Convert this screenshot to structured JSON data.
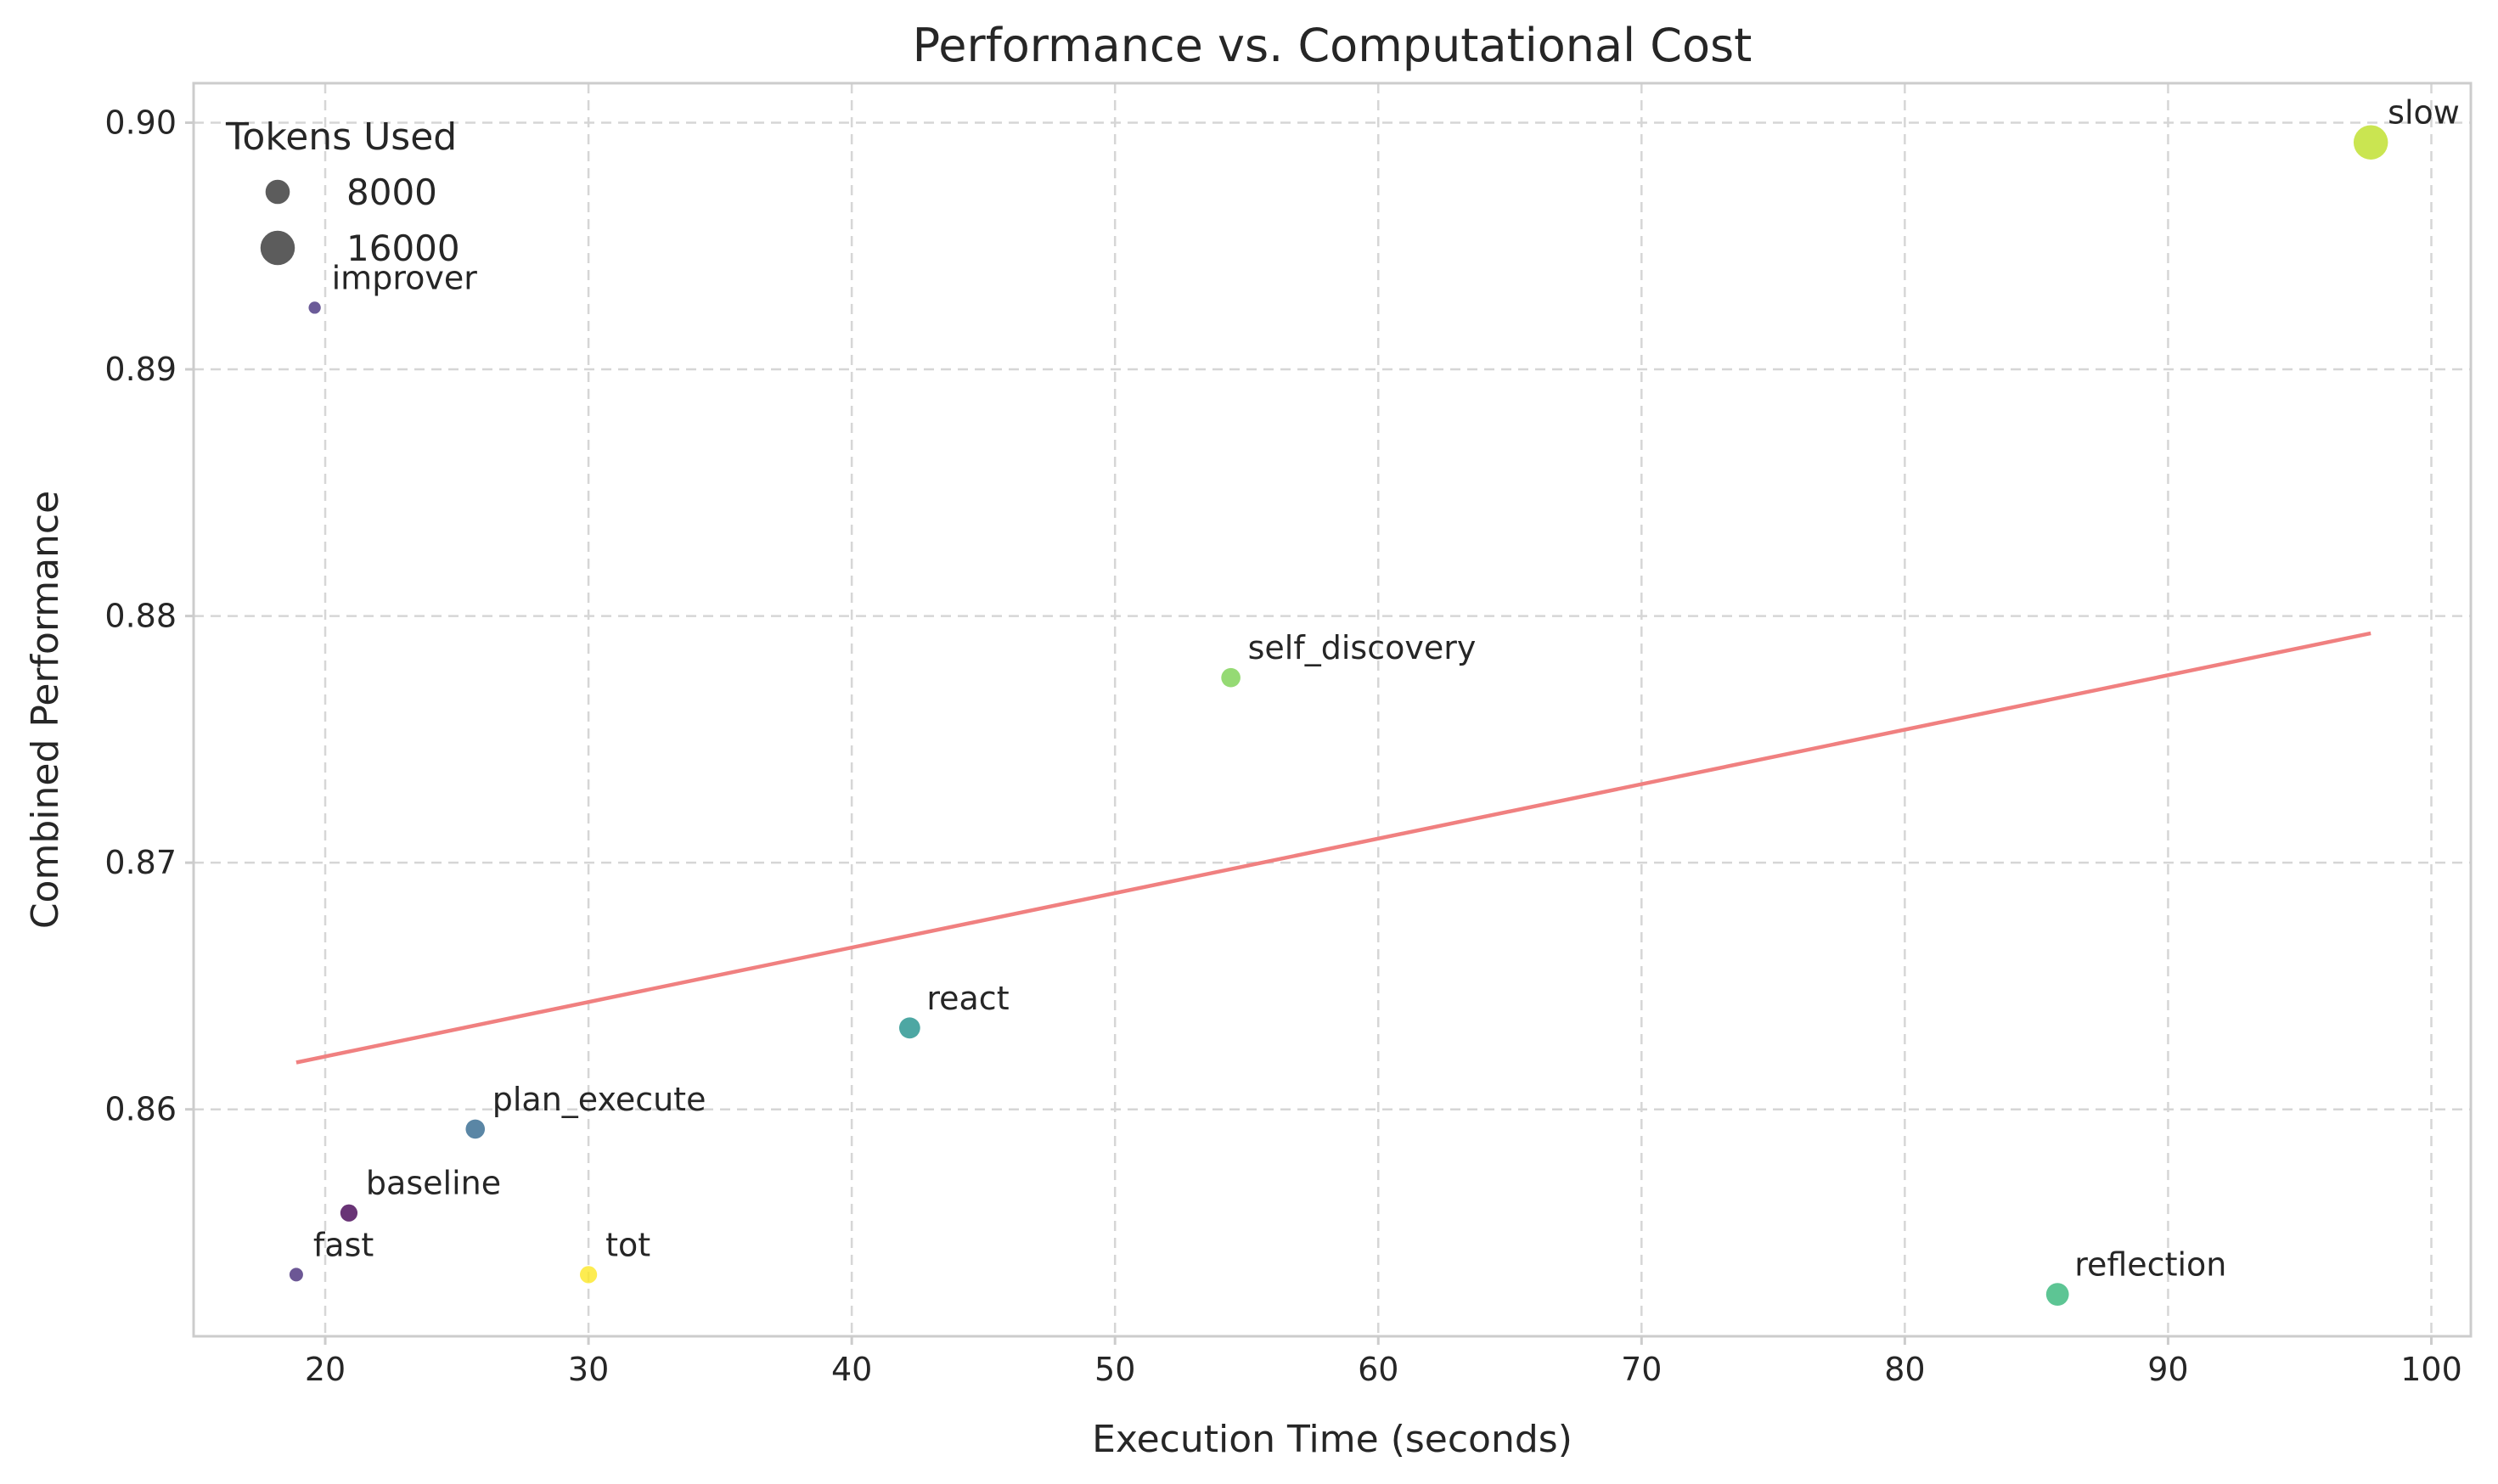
{
  "chart_data": {
    "type": "scatter",
    "title": "Performance vs. Computational Cost",
    "xlabel": "Execution Time (seconds)",
    "ylabel": "Combined Performance",
    "xlim": [
      15,
      101.5
    ],
    "ylim": [
      0.8508,
      0.9016
    ],
    "xticks": [
      20,
      30,
      40,
      50,
      60,
      70,
      80,
      90,
      100
    ],
    "yticks": [
      0.86,
      0.87,
      0.88,
      0.89,
      0.9
    ],
    "xtick_labels": [
      "20",
      "30",
      "40",
      "50",
      "60",
      "70",
      "80",
      "90",
      "100"
    ],
    "ytick_labels": [
      "0.86",
      "0.87",
      "0.88",
      "0.89",
      "0.90"
    ],
    "grid": true,
    "colormap": "viridis",
    "points": [
      {
        "label": "improver",
        "x": 19.6,
        "y": 0.8925,
        "tokens": 2000,
        "color": "#46327e"
      },
      {
        "label": "fast",
        "x": 18.9,
        "y": 0.8533,
        "tokens": 2500,
        "color": "#472d7b"
      },
      {
        "label": "baseline",
        "x": 20.9,
        "y": 0.8558,
        "tokens": 4000,
        "color": "#440154"
      },
      {
        "label": "plan_execute",
        "x": 25.7,
        "y": 0.8592,
        "tokens": 5000,
        "color": "#31688e"
      },
      {
        "label": "tot",
        "x": 30.0,
        "y": 0.8533,
        "tokens": 4000,
        "color": "#fde725"
      },
      {
        "label": "react",
        "x": 42.2,
        "y": 0.8633,
        "tokens": 6000,
        "color": "#21918c"
      },
      {
        "label": "self_discovery",
        "x": 54.4,
        "y": 0.8775,
        "tokens": 5000,
        "color": "#7ad151"
      },
      {
        "label": "reflection",
        "x": 85.8,
        "y": 0.8525,
        "tokens": 7000,
        "color": "#35b779"
      },
      {
        "label": "slow",
        "x": 97.7,
        "y": 0.8992,
        "tokens": 16000,
        "color": "#bddf26"
      }
    ],
    "trend_line": {
      "x": [
        18.9,
        97.7
      ],
      "y": [
        0.8619,
        0.8793
      ],
      "color": "#f08080"
    },
    "legend": {
      "title": "Tokens Used",
      "position": "top-left",
      "entries": [
        {
          "label": "8000",
          "tokens": 8000
        },
        {
          "label": "16000",
          "tokens": 16000
        }
      ]
    }
  }
}
